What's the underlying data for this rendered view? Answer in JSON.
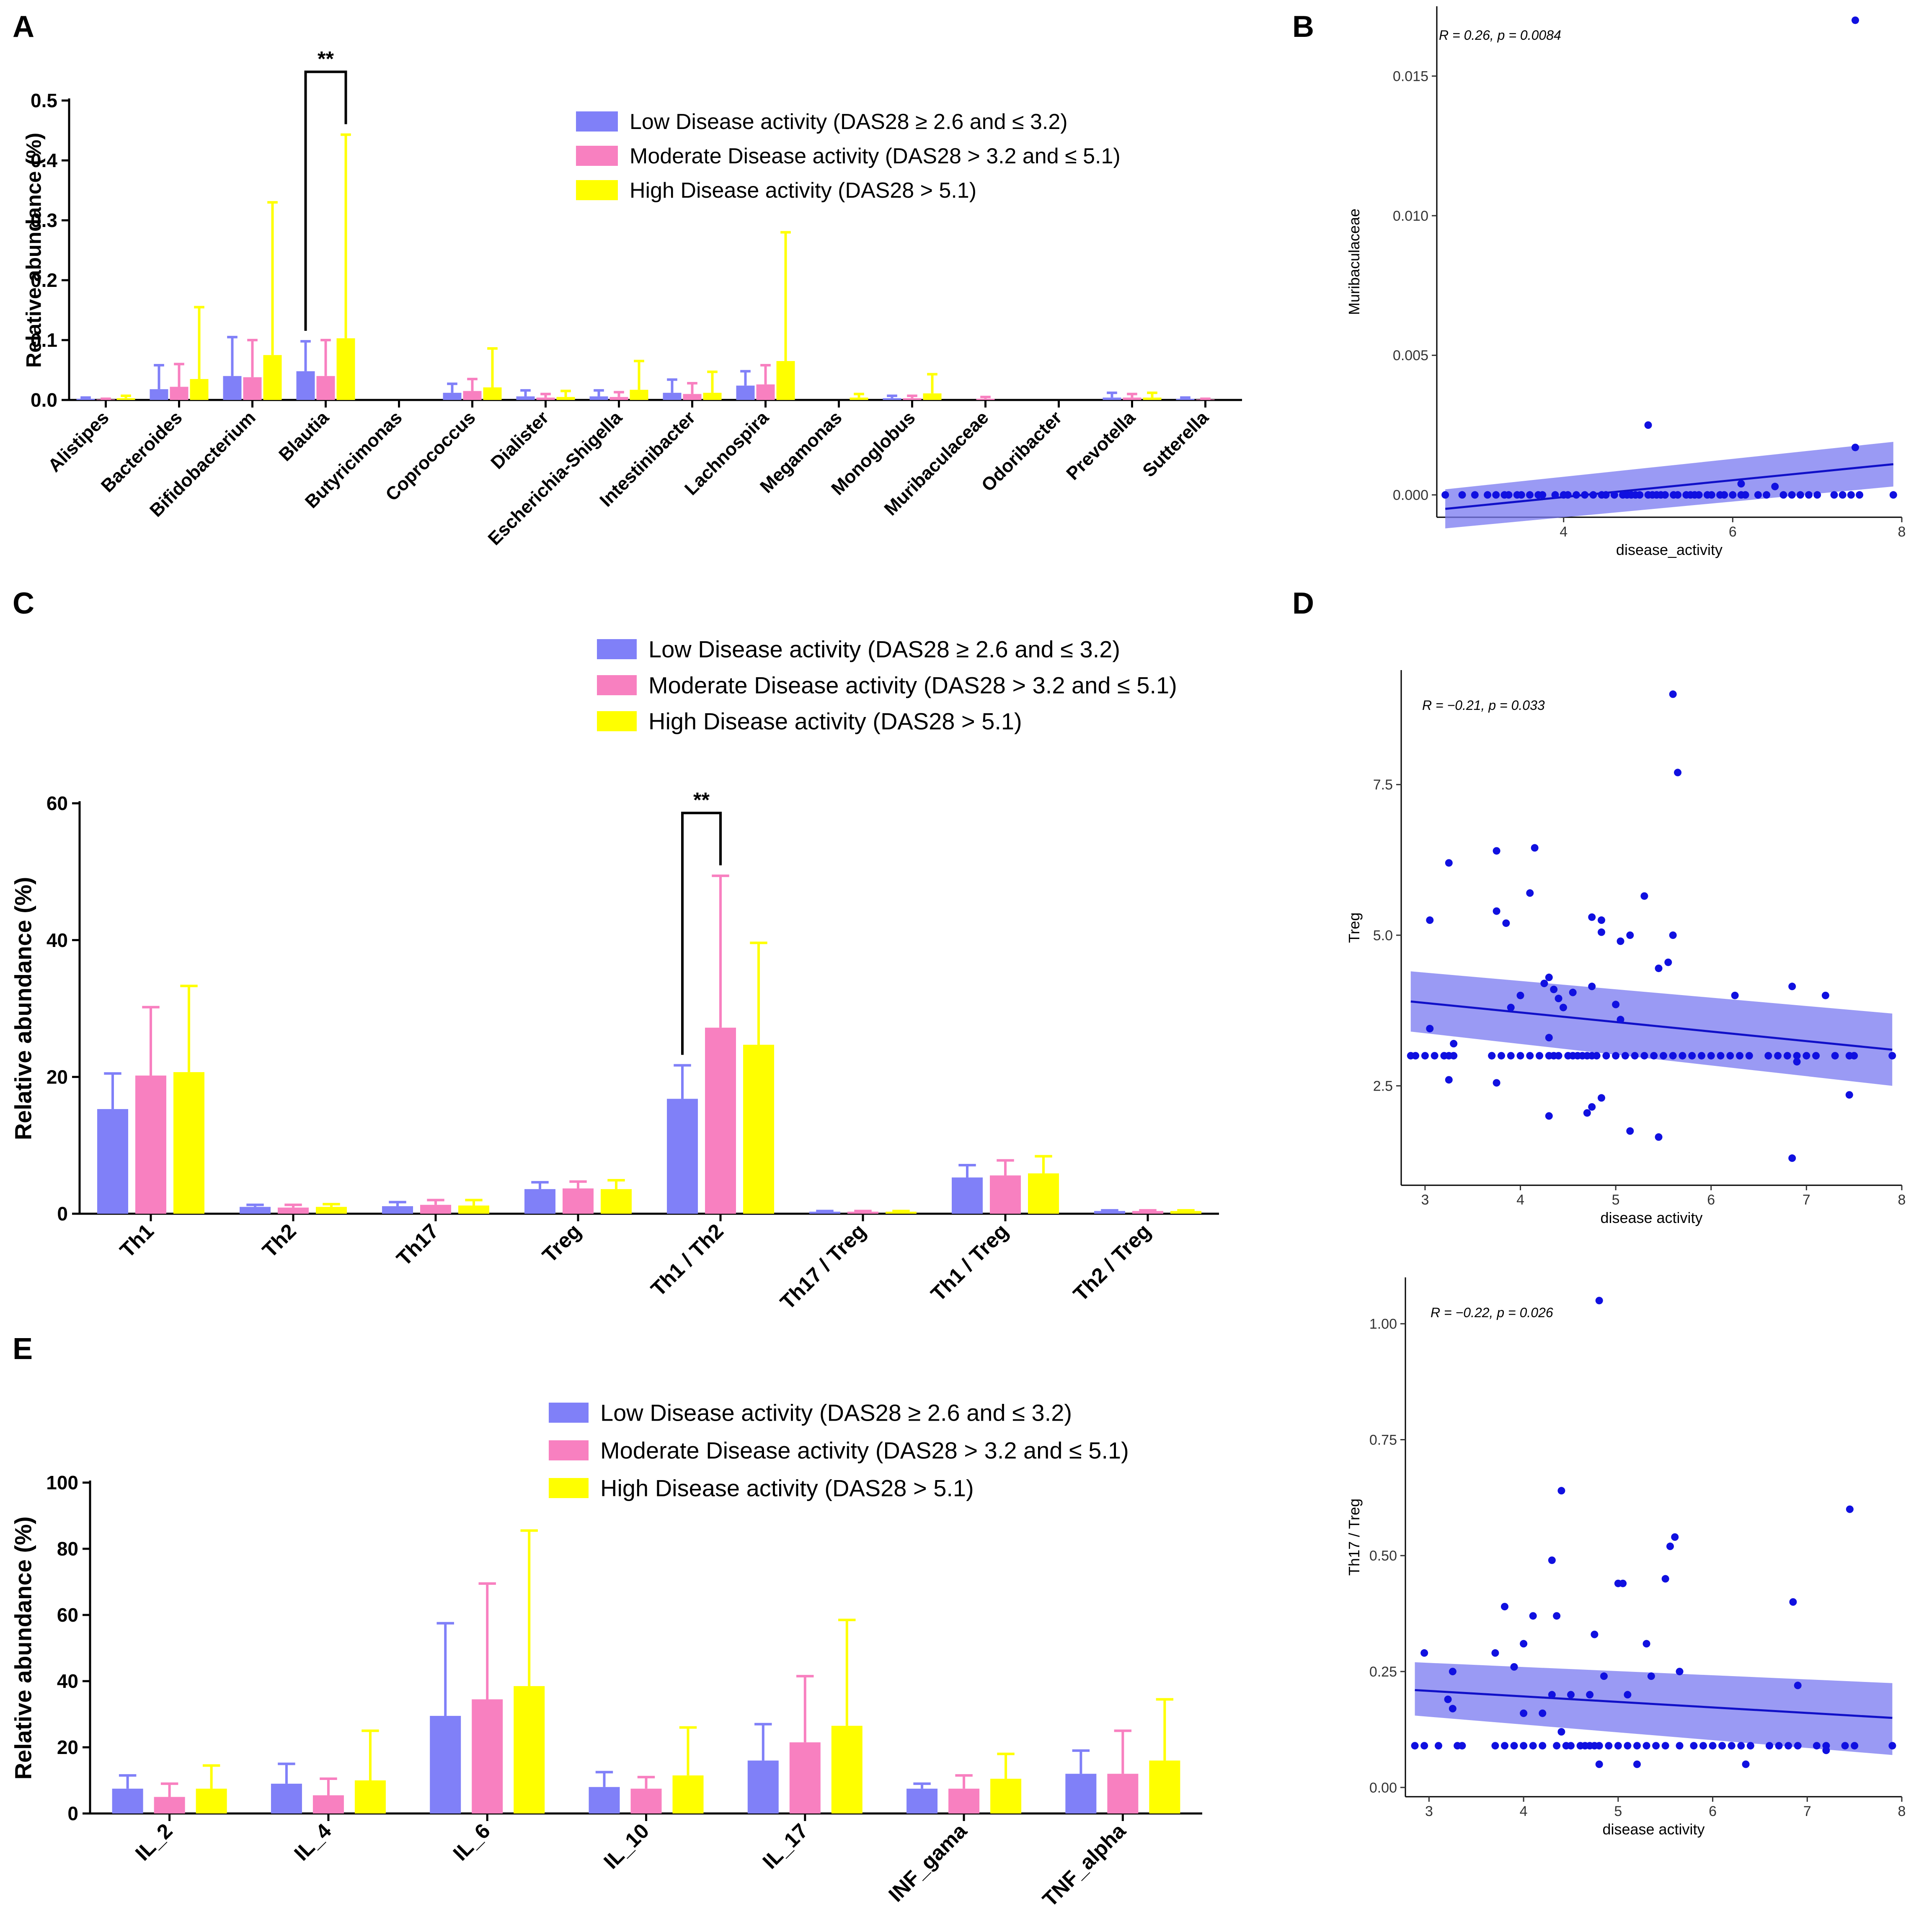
{
  "colors": {
    "low": "#8080f8",
    "moderate": "#f880c0",
    "high": "#ffff00",
    "scatter_point": "#1010e0",
    "band": "#7878f0",
    "line": "#1010c8"
  },
  "legend": {
    "low": "Low Disease activity (DAS28 ≥ 2.6 and ≤ 3.2)",
    "moderate": "Moderate Disease activity (DAS28 > 3.2 and ≤ 5.1)",
    "high": "High Disease activity (DAS28 > 5.1)"
  },
  "chart_data": [
    {
      "panel": "A",
      "type": "bar",
      "ylabel": "Relative abundance (%)",
      "ylim": [
        0,
        0.5
      ],
      "yticks": [
        "0.0",
        "0.1",
        "0.2",
        "0.3",
        "0.4",
        "0.5"
      ],
      "yticks_values": [
        0,
        0.1,
        0.2,
        0.3,
        0.4,
        0.5
      ],
      "categories": [
        "Alistipes",
        "Bacteroides",
        "Bifidobacterium",
        "Blautia",
        "Butyricimonas",
        "Coprococcus",
        "Dialister",
        "Escherichia-Shigella",
        "Intestinibacter",
        "Lachnospira",
        "Megamonas",
        "Monoglobus",
        "Muribaculaceae",
        "Odoribacter",
        "Prevotella",
        "Sutterella"
      ],
      "series": [
        {
          "name": "Low",
          "values": [
            0.002,
            0.018,
            0.04,
            0.048,
            0.0,
            0.012,
            0.006,
            0.006,
            0.012,
            0.024,
            0.0,
            0.003,
            0.0,
            0.0,
            0.004,
            0.002
          ],
          "errors": [
            0.002,
            0.04,
            0.065,
            0.05,
            0.0,
            0.015,
            0.01,
            0.01,
            0.022,
            0.024,
            0.0,
            0.004,
            0.0,
            0.0,
            0.008,
            0.002
          ]
        },
        {
          "name": "Moderate",
          "values": [
            0.001,
            0.022,
            0.038,
            0.04,
            0.0,
            0.015,
            0.004,
            0.005,
            0.01,
            0.026,
            0.0,
            0.003,
            0.002,
            0.0,
            0.004,
            0.001
          ],
          "errors": [
            0.001,
            0.038,
            0.062,
            0.06,
            0.0,
            0.02,
            0.006,
            0.008,
            0.018,
            0.032,
            0.0,
            0.004,
            0.003,
            0.0,
            0.006,
            0.001
          ]
        },
        {
          "name": "High",
          "values": [
            0.003,
            0.035,
            0.075,
            0.103,
            0.0,
            0.021,
            0.005,
            0.017,
            0.012,
            0.065,
            0.004,
            0.011,
            0.0,
            0.0,
            0.004,
            0.0
          ],
          "errors": [
            0.004,
            0.12,
            0.255,
            0.34,
            0.0,
            0.065,
            0.01,
            0.048,
            0.035,
            0.215,
            0.006,
            0.032,
            0.0,
            0.0,
            0.008,
            0.0
          ]
        }
      ],
      "significance": [
        {
          "category": "Blautia",
          "from": "Low",
          "to": "High",
          "label": "**"
        }
      ]
    },
    {
      "panel": "C",
      "type": "bar",
      "ylabel": "Relative abundance (%)",
      "ylim": [
        0,
        60
      ],
      "yticks": [
        "0",
        "20",
        "40",
        "60"
      ],
      "yticks_values": [
        0,
        20,
        40,
        60
      ],
      "categories": [
        "Th1",
        "Th2",
        "Th17",
        "Treg",
        "Th1 / Th2",
        "Th17 / Treg",
        "Th1 / Treg",
        "Th2 / Treg"
      ],
      "series": [
        {
          "name": "Low",
          "values": [
            15.3,
            1.0,
            1.1,
            3.6,
            16.8,
            0.3,
            5.3,
            0.4
          ],
          "errors": [
            5.2,
            0.3,
            0.6,
            1.0,
            4.9,
            0.1,
            1.8,
            0.1
          ]
        },
        {
          "name": "Moderate",
          "values": [
            20.2,
            0.9,
            1.3,
            3.7,
            27.2,
            0.3,
            5.6,
            0.4
          ],
          "errors": [
            10.0,
            0.4,
            0.7,
            1.0,
            22.2,
            0.1,
            2.2,
            0.1
          ]
        },
        {
          "name": "High",
          "values": [
            20.7,
            1.0,
            1.2,
            3.6,
            24.7,
            0.3,
            5.9,
            0.4
          ],
          "errors": [
            12.6,
            0.4,
            0.8,
            1.3,
            14.9,
            0.1,
            2.5,
            0.1
          ]
        }
      ],
      "significance": [
        {
          "category": "Th1 / Th2",
          "from": "Low",
          "to": "Moderate",
          "label": "**"
        }
      ]
    },
    {
      "panel": "E",
      "type": "bar",
      "ylabel": "Relative abundance (%)",
      "ylim": [
        0,
        100
      ],
      "yticks": [
        "0",
        "20",
        "40",
        "60",
        "80",
        "100"
      ],
      "yticks_values": [
        0,
        20,
        40,
        60,
        80,
        100
      ],
      "categories": [
        "IL_2",
        "IL_4",
        "IL_6",
        "IL_10",
        "IL_17",
        "INF_gama",
        "TNF_alpha"
      ],
      "series": [
        {
          "name": "Low",
          "values": [
            7.5,
            9.0,
            29.5,
            8.0,
            16.0,
            7.5,
            12.0
          ],
          "errors": [
            4.0,
            6.0,
            28.0,
            4.5,
            11.0,
            1.5,
            7.0
          ]
        },
        {
          "name": "Moderate",
          "values": [
            5.0,
            5.5,
            34.5,
            7.5,
            21.5,
            7.5,
            12.0
          ],
          "errors": [
            4.0,
            5.0,
            35.0,
            3.5,
            20.0,
            4.0,
            13.0
          ]
        },
        {
          "name": "High",
          "values": [
            7.5,
            10.0,
            38.5,
            11.5,
            26.5,
            10.5,
            16.0
          ],
          "errors": [
            7.0,
            15.0,
            47.0,
            14.5,
            32.0,
            7.5,
            18.5
          ]
        }
      ]
    },
    {
      "panel": "B",
      "type": "scatter",
      "xlabel": "disease_activity",
      "ylabel": "Muribaculaceae",
      "stat_text": "R = 0.26, p = 0.0084",
      "xlim": [
        2.5,
        8.0
      ],
      "ylim": [
        -0.0008,
        0.0175
      ],
      "xticks": [
        "4",
        "6",
        "8"
      ],
      "xticks_values": [
        4,
        6,
        8
      ],
      "yticks": [
        "0.000",
        "0.005",
        "0.010",
        "0.015"
      ],
      "yticks_values": [
        0,
        0.005,
        0.01,
        0.015
      ],
      "fit": {
        "x": [
          2.6,
          7.9
        ],
        "y": [
          -0.0005,
          0.0011
        ],
        "band_low": [
          -0.0012,
          0.0003
        ],
        "band_high": [
          0.0002,
          0.0019
        ]
      },
      "x": [
        2.6,
        2.8,
        2.95,
        3.1,
        3.2,
        3.3,
        3.35,
        3.45,
        3.5,
        3.6,
        3.7,
        3.75,
        3.9,
        4.0,
        4.05,
        4.15,
        4.25,
        4.35,
        4.45,
        4.5,
        4.6,
        4.7,
        4.75,
        4.8,
        4.85,
        4.9,
        5.0,
        5.05,
        5.1,
        5.15,
        5.2,
        5.3,
        5.35,
        5.45,
        5.5,
        5.55,
        5.6,
        5.7,
        5.75,
        5.85,
        5.9,
        6.0,
        6.1,
        6.15,
        6.3,
        6.4,
        6.6,
        6.7,
        6.8,
        6.9,
        7.0,
        7.2,
        7.3,
        7.4,
        7.5,
        7.9,
        5.0,
        6.1,
        6.5,
        7.45,
        7.45
      ],
      "y": [
        0,
        0,
        0,
        0,
        0,
        0,
        0,
        0,
        0,
        0,
        0,
        0,
        0,
        0,
        0,
        0,
        0,
        0,
        0,
        0,
        0,
        0,
        0,
        0,
        0,
        0,
        0,
        0,
        0,
        0,
        0,
        0,
        0,
        0,
        0,
        0,
        0,
        0,
        0,
        0,
        0,
        0,
        0,
        0,
        0,
        0,
        0,
        0,
        0,
        0,
        0,
        0,
        0,
        0,
        0,
        0,
        0.0025,
        0.0004,
        0.0003,
        0.0017,
        0.017
      ]
    },
    {
      "panel": "D",
      "type": "scatter",
      "xlabel": "disease activity",
      "ylabel": "Treg",
      "stat_text": "R = −0.21, p = 0.033",
      "xlim": [
        2.75,
        8.0
      ],
      "ylim": [
        0.85,
        9.4
      ],
      "xticks": [
        "3",
        "4",
        "5",
        "6",
        "7",
        "8"
      ],
      "xticks_values": [
        3,
        4,
        5,
        6,
        7,
        8
      ],
      "yticks": [
        "2.5",
        "5.0",
        "7.5"
      ],
      "yticks_values": [
        2.5,
        5.0,
        7.5
      ],
      "fit": {
        "x": [
          2.85,
          7.9
        ],
        "y": [
          3.9,
          3.1
        ],
        "band_low": [
          3.4,
          2.5
        ],
        "band_high": [
          4.4,
          3.7
        ]
      },
      "x": [
        2.85,
        2.9,
        3.0,
        3.1,
        3.2,
        3.25,
        3.3,
        3.7,
        3.7,
        3.8,
        3.9,
        4.0,
        4.1,
        4.2,
        4.3,
        4.35,
        4.4,
        4.5,
        4.55,
        4.6,
        4.65,
        4.7,
        4.75,
        4.8,
        4.9,
        5.0,
        5.1,
        5.2,
        5.3,
        5.4,
        5.5,
        5.6,
        5.7,
        5.8,
        5.9,
        6.0,
        6.1,
        6.2,
        6.3,
        6.4,
        6.6,
        6.7,
        6.8,
        6.9,
        7.0,
        7.1,
        7.3,
        7.45,
        7.5,
        7.9,
        3.05,
        3.25,
        3.75,
        3.85,
        3.9,
        4.1,
        4.15,
        4.3,
        4.35,
        4.75,
        4.85,
        5.15,
        5.3,
        5.55,
        5.6,
        5.65,
        4.3,
        3.05,
        3.3,
        3.75,
        4.0,
        4.25,
        4.4,
        4.45,
        4.55,
        4.75,
        4.85,
        5.05,
        5.45,
        5.6,
        6.25,
        6.85,
        7.2,
        3.25,
        3.75,
        4.3,
        4.7,
        4.75,
        4.85,
        5.15,
        5.45,
        6.85,
        7.45,
        6.9,
        5.05,
        5.0
      ],
      "y": [
        3.0,
        3.0,
        3.0,
        3.0,
        3.0,
        3.0,
        3.0,
        3.0,
        3.0,
        3.0,
        3.0,
        3.0,
        3.0,
        3.0,
        3.0,
        3.0,
        3.0,
        3.0,
        3.0,
        3.0,
        3.0,
        3.0,
        3.0,
        3.0,
        3.0,
        3.0,
        3.0,
        3.0,
        3.0,
        3.0,
        3.0,
        3.0,
        3.0,
        3.0,
        3.0,
        3.0,
        3.0,
        3.0,
        3.0,
        3.0,
        3.0,
        3.0,
        3.0,
        3.0,
        3.0,
        3.0,
        3.0,
        3.0,
        3.0,
        3.0,
        5.25,
        6.2,
        6.4,
        5.2,
        3.8,
        5.7,
        6.45,
        4.3,
        4.1,
        5.3,
        5.25,
        5.0,
        5.65,
        4.55,
        9.0,
        7.7,
        3.3,
        3.45,
        3.2,
        5.4,
        4.0,
        4.2,
        3.95,
        3.8,
        4.05,
        4.15,
        5.05,
        4.9,
        4.45,
        5.0,
        4.0,
        4.15,
        4.0,
        2.6,
        2.55,
        2.0,
        2.05,
        2.15,
        2.3,
        1.75,
        1.65,
        1.3,
        2.35,
        2.9,
        3.6,
        3.85
      ]
    },
    {
      "panel": "D2",
      "type": "scatter",
      "xlabel": "disease activity",
      "ylabel": "Th17 / Treg",
      "stat_text": "R = −0.22, p = 0.026",
      "xlim": [
        2.75,
        8.0
      ],
      "ylim": [
        -0.02,
        1.1
      ],
      "xticks": [
        "3",
        "4",
        "5",
        "6",
        "7",
        "8"
      ],
      "xticks_values": [
        3,
        4,
        5,
        6,
        7,
        8
      ],
      "yticks": [
        "0.00",
        "0.25",
        "0.50",
        "0.75",
        "1.00"
      ],
      "yticks_values": [
        0,
        0.25,
        0.5,
        0.75,
        1.0
      ],
      "fit": {
        "x": [
          2.85,
          7.9
        ],
        "y": [
          0.21,
          0.15
        ],
        "band_low": [
          0.155,
          0.07
        ],
        "band_high": [
          0.27,
          0.225
        ]
      },
      "x": [
        2.85,
        2.95,
        3.1,
        3.3,
        3.35,
        3.7,
        3.8,
        3.9,
        4.0,
        4.1,
        4.2,
        4.35,
        4.45,
        4.5,
        4.6,
        4.65,
        4.7,
        4.75,
        4.8,
        4.9,
        5.0,
        5.1,
        5.2,
        5.3,
        5.4,
        5.5,
        5.65,
        5.8,
        5.9,
        6.0,
        6.1,
        6.2,
        6.3,
        6.4,
        6.6,
        6.7,
        6.8,
        6.9,
        7.1,
        7.2,
        7.4,
        7.5,
        7.9,
        2.95,
        3.2,
        3.25,
        3.7,
        3.8,
        3.9,
        4.1,
        4.3,
        4.35,
        4.4,
        4.75,
        4.8,
        5.0,
        5.05,
        5.3,
        5.5,
        5.55,
        5.6,
        5.65,
        6.85,
        6.9,
        7.45,
        3.25,
        4.0,
        4.3,
        4.5,
        4.7,
        4.85,
        5.35,
        4.2,
        4.0,
        5.1,
        6.35,
        7.2,
        4.4,
        5.2,
        4.8
      ],
      "y": [
        0.09,
        0.09,
        0.09,
        0.09,
        0.09,
        0.09,
        0.09,
        0.09,
        0.09,
        0.09,
        0.09,
        0.09,
        0.09,
        0.09,
        0.09,
        0.09,
        0.09,
        0.09,
        0.09,
        0.09,
        0.09,
        0.09,
        0.09,
        0.09,
        0.09,
        0.09,
        0.09,
        0.09,
        0.09,
        0.09,
        0.09,
        0.09,
        0.09,
        0.09,
        0.09,
        0.09,
        0.09,
        0.09,
        0.09,
        0.09,
        0.09,
        0.09,
        0.09,
        0.29,
        0.19,
        0.17,
        0.29,
        0.39,
        0.26,
        0.37,
        0.49,
        0.37,
        0.64,
        0.33,
        1.05,
        0.44,
        0.44,
        0.31,
        0.45,
        0.52,
        0.54,
        0.25,
        0.4,
        0.22,
        0.6,
        0.25,
        0.31,
        0.2,
        0.2,
        0.2,
        0.24,
        0.24,
        0.16,
        0.16,
        0.2,
        0.05,
        0.08,
        0.12,
        0.05,
        0.05
      ]
    }
  ]
}
